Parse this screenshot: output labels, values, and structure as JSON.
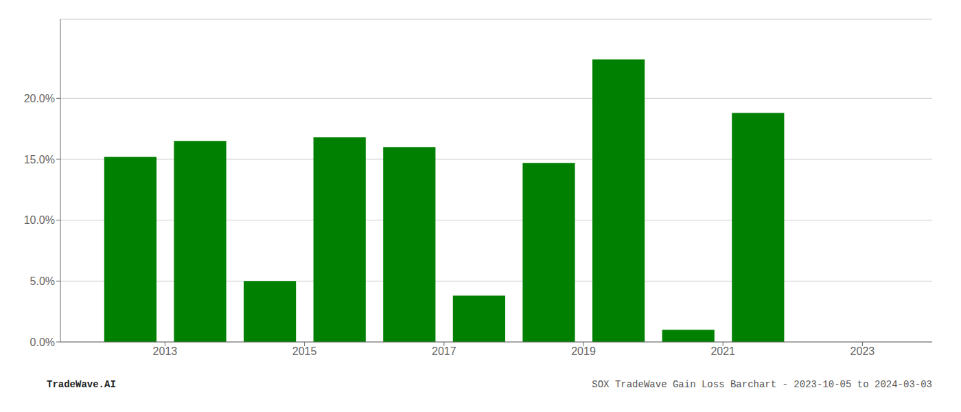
{
  "chart_data": {
    "type": "bar",
    "x": [
      2012.5,
      2013.5,
      2014.5,
      2015.5,
      2016.5,
      2017.5,
      2018.5,
      2019.5,
      2020.5,
      2021.5
    ],
    "values": [
      0.152,
      0.165,
      0.05,
      0.168,
      0.16,
      0.038,
      0.147,
      0.232,
      0.01,
      0.188
    ],
    "color": "#008000",
    "xlim": [
      2011.5,
      2024.0
    ],
    "xticks": [
      2013,
      2015,
      2017,
      2019,
      2021,
      2023
    ],
    "ylim": [
      0,
      0.265
    ],
    "yticks": [
      {
        "value": 0.0,
        "label": "0.0%"
      },
      {
        "value": 0.05,
        "label": "5.0%"
      },
      {
        "value": 0.1,
        "label": "10.0%"
      },
      {
        "value": 0.15,
        "label": "15.0%"
      },
      {
        "value": 0.2,
        "label": "20.0%"
      }
    ],
    "grid": true,
    "annotations": [
      "TradeWave.AI",
      "SOX TradeWave Gain Loss Barchart - 2023-10-05 to 2024-03-03"
    ]
  }
}
